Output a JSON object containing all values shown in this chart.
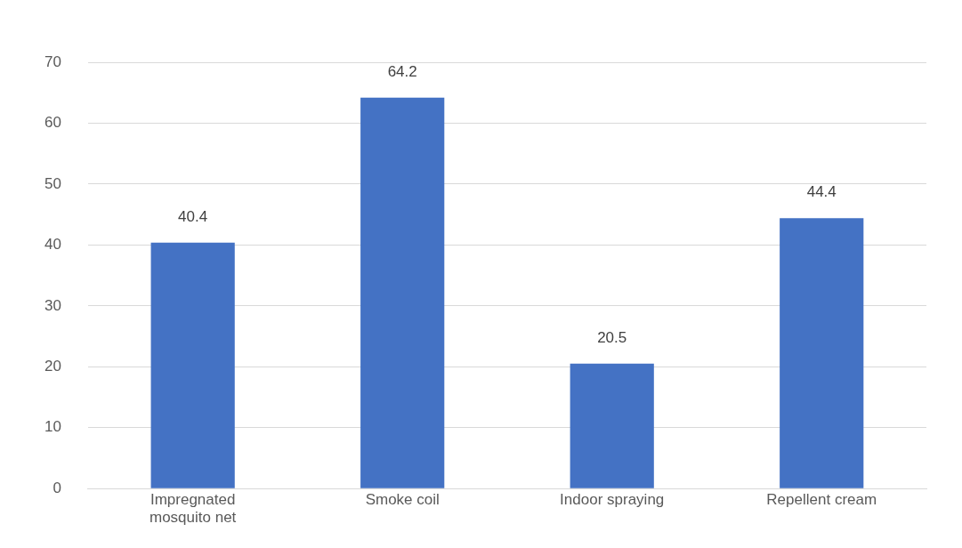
{
  "chart_data": {
    "type": "bar",
    "categories": [
      "Impregnated mosquito net",
      "Smoke coil",
      "Indoor spraying",
      "Repellent cream"
    ],
    "values": [
      40.4,
      64.2,
      20.5,
      44.4
    ],
    "color": "#4472c4",
    "ylim": [
      0,
      70
    ],
    "yticks": [
      0,
      10,
      20,
      30,
      40,
      50,
      60,
      70
    ],
    "grid": "y",
    "data_labels": true,
    "legend": false
  }
}
